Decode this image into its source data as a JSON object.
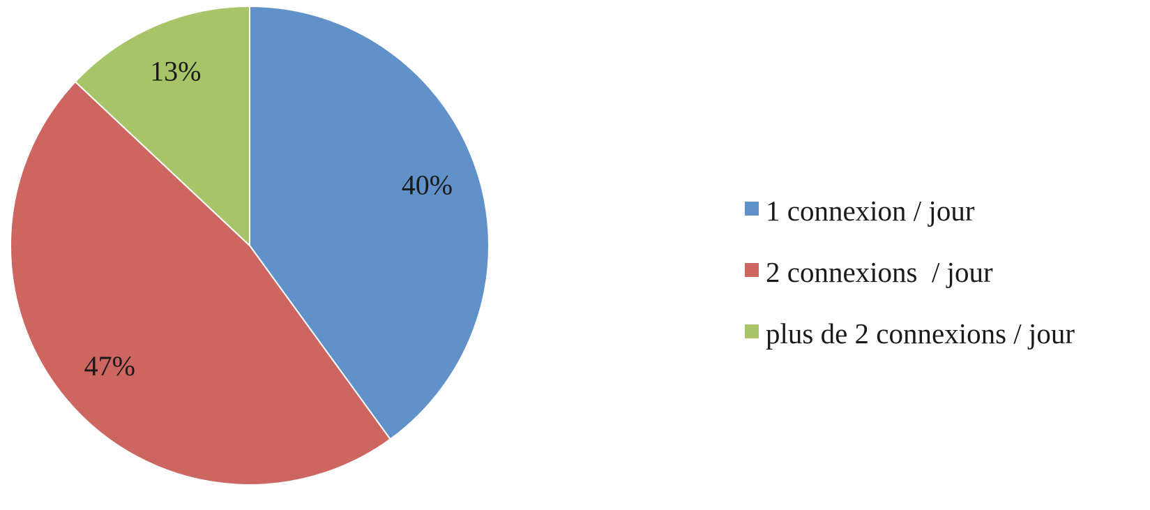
{
  "chart_data": {
    "type": "pie",
    "title": "",
    "start_angle_deg": 0,
    "direction": "clockwise",
    "slices": [
      {
        "name": "1 connexion / jour",
        "value": 40,
        "label": "40%",
        "color": "#6191c9"
      },
      {
        "name": "2 connexions  / jour",
        "value": 47,
        "label": "47%",
        "color": "#cd6561"
      },
      {
        "name": "plus de 2 connexions / jour",
        "value": 13,
        "label": "13%",
        "color": "#a8c468"
      }
    ],
    "legend_position": "right"
  }
}
